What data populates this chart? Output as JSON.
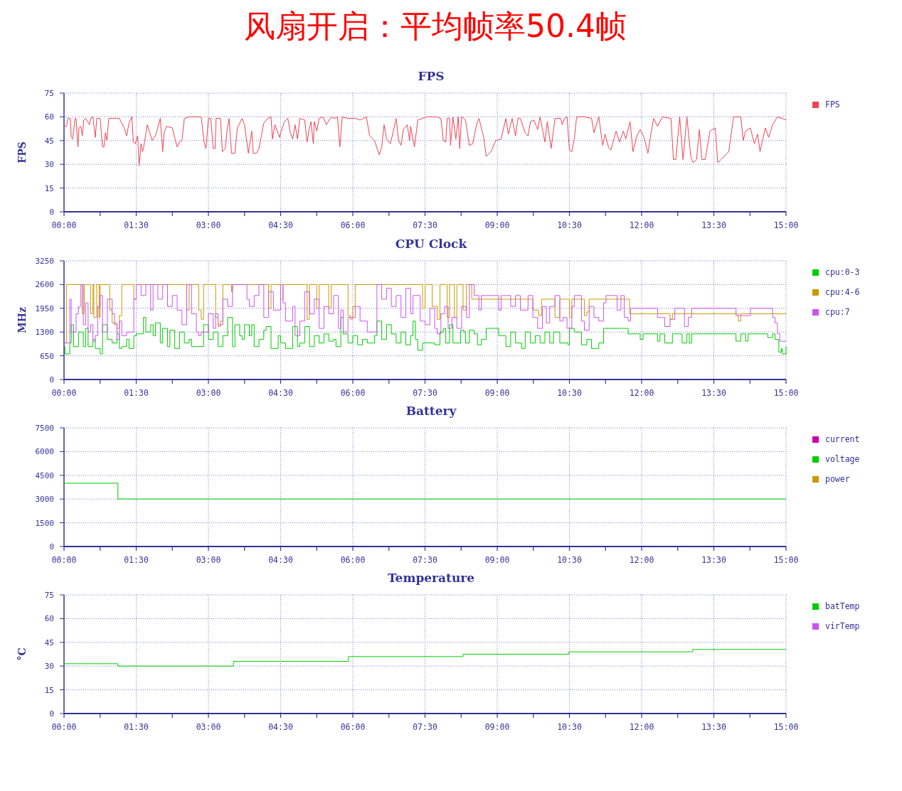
{
  "chart_data": [
    {
      "type": "line",
      "title": "风扇开启：平均帧率50.4帧",
      "subtitle": "FPS",
      "ylabel": "FPS",
      "xlim": [
        0,
        15
      ],
      "ylim": [
        0,
        75
      ],
      "yticks": [
        0,
        15,
        30,
        45,
        60,
        75
      ],
      "xticks": [
        {
          "value": 0,
          "label": "00:00"
        },
        {
          "value": 0.75,
          "label": null
        },
        {
          "value": 1.5,
          "label": "01:30"
        },
        {
          "value": 2.25,
          "label": null
        },
        {
          "value": 3,
          "label": "03:00"
        },
        {
          "value": 3.75,
          "label": null
        },
        {
          "value": 4.5,
          "label": "04:30"
        },
        {
          "value": 5.25,
          "label": null
        },
        {
          "value": 6,
          "label": "06:00"
        },
        {
          "value": 6.75,
          "label": null
        },
        {
          "value": 7.5,
          "label": "07:30"
        },
        {
          "value": 8.25,
          "label": null
        },
        {
          "value": 9,
          "label": "09:00"
        },
        {
          "value": 9.75,
          "label": null
        },
        {
          "value": 10.5,
          "label": "10:30"
        },
        {
          "value": 11.25,
          "label": null
        },
        {
          "value": 12,
          "label": "12:00"
        },
        {
          "value": 12.75,
          "label": null
        },
        {
          "value": 13.5,
          "label": "13:30"
        },
        {
          "value": 14.25,
          "label": null
        },
        {
          "value": 15,
          "label": "15:00"
        }
      ],
      "grid": true,
      "legend": "top right",
      "series": [
        {
          "name": "FPS",
          "color": "#ee4455",
          "x": [
            0,
            0.05,
            0.08,
            0.13,
            0.15,
            0.18,
            0.23,
            0.25,
            0.28,
            0.29,
            0.31,
            0.35,
            0.38,
            0.41,
            0.45,
            0.53,
            0.55,
            0.6,
            0.65,
            0.68,
            0.75,
            0.8,
            0.83,
            0.86,
            0.89,
            0.93,
            1.05,
            1.15,
            1.25,
            1.3,
            1.35,
            1.41,
            1.44,
            1.48,
            1.53,
            1.56,
            1.6,
            1.63,
            1.65,
            1.73,
            1.78,
            1.83,
            1.9,
            2.0,
            2.05,
            2.08,
            2.13,
            2.25,
            2.29,
            2.35,
            2.4,
            2.45,
            2.5,
            2.6,
            2.85,
            2.91,
            2.95,
            3.0,
            3.05,
            3.1,
            3.14,
            3.16,
            3.25,
            3.29,
            3.35,
            3.39,
            3.43,
            3.48,
            3.55,
            3.6,
            3.7,
            3.75,
            3.83,
            3.9,
            3.93,
            4.0,
            4.05,
            4.15,
            4.23,
            4.3,
            4.33,
            4.38,
            4.48,
            4.5,
            4.58,
            4.65,
            4.7,
            4.75,
            4.8,
            4.85,
            4.9,
            5.0,
            5.05,
            5.09,
            5.13,
            5.18,
            5.2,
            5.25,
            5.3,
            5.38,
            5.45,
            5.55,
            5.63,
            5.68,
            5.73,
            5.78,
            5.9,
            6.05,
            6.15,
            6.28,
            6.35,
            6.45,
            6.55,
            6.6,
            6.65,
            6.7,
            6.78,
            6.85,
            6.9,
            6.95,
            7.0,
            7.05,
            7.13,
            7.18,
            7.2,
            7.28,
            7.35,
            7.45,
            7.53,
            7.75,
            7.83,
            7.88,
            7.93,
            7.96,
            8.01,
            8.03,
            8.08,
            8.14,
            8.19,
            8.22,
            8.26,
            8.34,
            8.36,
            8.42,
            8.49,
            8.57,
            8.62,
            8.72,
            8.77,
            8.87,
            8.97,
            9.08,
            9.18,
            9.23,
            9.31,
            9.38,
            9.43,
            9.48,
            9.58,
            9.64,
            9.69,
            9.76,
            9.84,
            9.89,
            9.99,
            10.04,
            10.12,
            10.2,
            10.32,
            10.35,
            10.4,
            10.45,
            10.5,
            10.55,
            10.6,
            10.65,
            10.81,
            10.96,
            11.01,
            11.11,
            11.19,
            11.24,
            11.31,
            11.36,
            11.47,
            11.54,
            11.62,
            11.67,
            11.76,
            11.82,
            11.9,
            11.97,
            12.05,
            12.13,
            12.18,
            12.25,
            12.33,
            12.43,
            12.61,
            12.66,
            12.71,
            12.79,
            12.86,
            12.94,
            13.02,
            13.07,
            13.14,
            13.2,
            13.25,
            13.32,
            13.42,
            13.53,
            13.58,
            13.65,
            13.81,
            13.91,
            14.06,
            14.11,
            14.16,
            14.26,
            14.34,
            14.41,
            14.46,
            14.57,
            14.64,
            14.72,
            14.82,
            14.92,
            15.0
          ],
          "values": [
            54,
            54,
            59,
            59,
            47,
            46,
            59,
            59,
            45,
            41,
            53,
            54,
            48,
            58,
            59,
            55,
            59,
            60,
            47,
            59,
            59,
            41,
            41,
            50,
            45,
            59,
            59,
            59,
            53,
            48,
            56,
            60,
            44,
            43,
            48,
            29,
            43,
            38,
            40,
            55,
            50,
            45,
            48,
            59,
            38,
            50,
            54,
            53,
            48,
            41,
            44,
            45,
            59,
            60,
            60,
            44,
            40,
            59,
            59,
            40,
            40,
            59,
            59,
            38,
            40,
            52,
            59,
            37,
            37,
            53,
            59,
            55,
            37,
            51,
            37,
            37,
            40,
            56,
            59,
            60,
            46,
            55,
            47,
            50,
            57,
            59,
            50,
            46,
            55,
            46,
            59,
            58,
            44,
            52,
            57,
            43,
            57,
            51,
            59,
            60,
            55,
            60,
            59,
            60,
            41,
            60,
            59,
            59,
            58,
            60,
            48,
            45,
            36,
            41,
            55,
            46,
            43,
            52,
            59,
            45,
            42,
            52,
            55,
            45,
            54,
            41,
            58,
            59,
            60,
            60,
            59,
            45,
            44,
            59,
            59,
            42,
            60,
            46,
            60,
            40,
            60,
            58,
            54,
            42,
            43,
            55,
            59,
            47,
            35,
            38,
            45,
            46,
            59,
            49,
            59,
            48,
            59,
            59,
            50,
            48,
            57,
            58,
            52,
            60,
            44,
            57,
            40,
            59,
            59,
            55,
            59,
            60,
            39,
            38,
            46,
            60,
            60,
            59,
            50,
            60,
            42,
            49,
            41,
            39,
            51,
            44,
            51,
            46,
            57,
            38,
            48,
            52,
            47,
            37,
            47,
            59,
            54,
            60,
            59,
            33,
            33,
            60,
            33,
            60,
            35,
            31,
            33,
            52,
            33,
            33,
            51,
            53,
            31,
            33,
            38,
            60,
            60,
            45,
            51,
            53,
            43,
            49,
            38,
            53,
            47,
            55,
            60,
            59,
            58
          ]
        }
      ]
    },
    {
      "type": "step",
      "title": "CPU Clock",
      "ylabel": "MHz",
      "xlim": [
        0,
        15
      ],
      "ylim": [
        0,
        3250
      ],
      "yticks": [
        0,
        650,
        1300,
        1950,
        2600,
        3250
      ],
      "xticks": [
        {
          "value": 0,
          "label": "00:00"
        },
        {
          "value": 0.75,
          "label": null
        },
        {
          "value": 1.5,
          "label": "01:30"
        },
        {
          "value": 2.25,
          "label": null
        },
        {
          "value": 3,
          "label": "03:00"
        },
        {
          "value": 3.75,
          "label": null
        },
        {
          "value": 4.5,
          "label": "04:30"
        },
        {
          "value": 5.25,
          "label": null
        },
        {
          "value": 6,
          "label": "06:00"
        },
        {
          "value": 6.75,
          "label": null
        },
        {
          "value": 7.5,
          "label": "07:30"
        },
        {
          "value": 8.25,
          "label": null
        },
        {
          "value": 9,
          "label": "09:00"
        },
        {
          "value": 9.75,
          "label": null
        },
        {
          "value": 10.5,
          "label": "10:30"
        },
        {
          "value": 11.25,
          "label": null
        },
        {
          "value": 12,
          "label": "12:00"
        },
        {
          "value": 12.75,
          "label": null
        },
        {
          "value": 13.5,
          "label": "13:30"
        },
        {
          "value": 14.25,
          "label": null
        },
        {
          "value": 15,
          "label": "15:00"
        }
      ],
      "grid": true,
      "legend": "top right",
      "series": [
        {
          "name": "cpu:0-3",
          "color": "#00cc00",
          "x": [
            0,
            0.02,
            0.1,
            0.12,
            0.15,
            0.2,
            0.3,
            0.4,
            0.45,
            0.5,
            0.6,
            0.65,
            0.75,
            0.8,
            0.9,
            1.0,
            1.1,
            1.15,
            1.2,
            1.3,
            1.35,
            1.45,
            1.5,
            1.6,
            1.65,
            1.7,
            1.8,
            1.85,
            1.9,
            2.0,
            2.05,
            2.15,
            2.2,
            2.3,
            2.4,
            2.5,
            2.6,
            2.65,
            2.85,
            2.9,
            3.0,
            3.1,
            3.2,
            3.3,
            3.4,
            3.5,
            3.55,
            3.65,
            3.7,
            3.75,
            3.85,
            3.9,
            3.95,
            4.05,
            4.15,
            4.2,
            4.3,
            4.45,
            4.5,
            4.6,
            4.75,
            4.85,
            4.9,
            5.0,
            5.1,
            5.2,
            5.3,
            5.4,
            5.5,
            5.6,
            5.65,
            5.75,
            5.8,
            5.9,
            6.0,
            6.1,
            6.2,
            6.3,
            6.45,
            6.5,
            6.6,
            6.7,
            6.8,
            6.9,
            7.0,
            7.1,
            7.2,
            7.25,
            7.3,
            7.35,
            7.45,
            7.55,
            7.65,
            7.7,
            7.81,
            7.88,
            7.93,
            8.01,
            8.08,
            8.16,
            8.24,
            8.31,
            8.34,
            8.42,
            8.52,
            8.59,
            8.67,
            8.77,
            9.0,
            9.03,
            9.18,
            9.28,
            9.38,
            9.51,
            9.58,
            9.69,
            9.79,
            9.89,
            9.99,
            10.09,
            10.17,
            10.3,
            10.47,
            10.5,
            10.6,
            10.75,
            10.86,
            10.96,
            11.11,
            11.21,
            11.62,
            11.72,
            11.92,
            11.97,
            12.03,
            12.28,
            12.33,
            12.38,
            12.48,
            12.64,
            12.79,
            12.84,
            12.94,
            12.99,
            13.04,
            13.5,
            13.91,
            13.96,
            14.06,
            14.16,
            14.21,
            14.57,
            14.62,
            14.72,
            14.77,
            14.85,
            14.9,
            14.92,
            15.0
          ],
          "values": [
            900,
            700,
            700,
            1000,
            1500,
            900,
            1300,
            900,
            1400,
            900,
            1100,
            850,
            700,
            1500,
            1100,
            1000,
            1250,
            850,
            900,
            1100,
            850,
            1200,
            1250,
            1250,
            1700,
            1300,
            1500,
            1200,
            1550,
            1000,
            1400,
            900,
            1350,
            850,
            1300,
            1000,
            1100,
            900,
            900,
            1500,
            1100,
            1300,
            900,
            1200,
            1700,
            900,
            1500,
            1200,
            1100,
            1500,
            1200,
            1500,
            900,
            1100,
            1350,
            1450,
            850,
            1200,
            1000,
            850,
            1450,
            900,
            1000,
            1450,
            900,
            1200,
            1000,
            1250,
            1050,
            1100,
            900,
            1700,
            1250,
            1000,
            1200,
            950,
            1100,
            1000,
            1200,
            1600,
            1100,
            1500,
            1250,
            1000,
            1300,
            950,
            1200,
            1600,
            1100,
            800,
            1000,
            1000,
            1000,
            950,
            1300,
            1400,
            1000,
            1500,
            1000,
            1000,
            1350,
            1300,
            1000,
            1350,
            1250,
            950,
            1100,
            1400,
            1400,
            1200,
            900,
            1300,
            1000,
            850,
            1300,
            1000,
            1200,
            1000,
            1300,
            1000,
            1300,
            1000,
            950,
            1400,
            1300,
            950,
            1100,
            850,
            1000,
            1400,
            1400,
            1250,
            1250,
            1100,
            1250,
            1250,
            1050,
            1250,
            1000,
            1250,
            1250,
            1000,
            1250,
            1000,
            1250,
            1250,
            1250,
            1050,
            1250,
            1050,
            1250,
            1250,
            1150,
            1250,
            1100,
            750,
            850,
            700,
            900
          ]
        },
        {
          "name": "cpu:4-6",
          "color": "#cc9900",
          "x": [
            0,
            0.05,
            0.35,
            0.38,
            0.42,
            0.5,
            0.55,
            0.6,
            0.62,
            0.68,
            0.73,
            0.75,
            0.9,
            0.95,
            1.0,
            1.1,
            1.15,
            1.2,
            1.4,
            1.45,
            1.5,
            2.5,
            2.55,
            2.6,
            2.7,
            2.8,
            2.85,
            2.9,
            3.1,
            3.15,
            3.2,
            3.25,
            3.3,
            3.45,
            3.48,
            3.5,
            4.2,
            4.25,
            4.3,
            4.45,
            4.5,
            4.55,
            5.0,
            5.05,
            5.1,
            5.2,
            5.25,
            5.3,
            5.45,
            5.5,
            5.55,
            5.8,
            5.9,
            5.95,
            6.0,
            6.05,
            6.3,
            7.42,
            7.45,
            7.5,
            7.6,
            7.65,
            7.75,
            7.81,
            7.93,
            7.96,
            8.01,
            8.06,
            8.11,
            8.16,
            8.24,
            8.29,
            8.36,
            8.44,
            8.47,
            9.69,
            9.74,
            9.86,
            9.92,
            10.09,
            10.2,
            10.3,
            10.45,
            10.5,
            10.55,
            10.75,
            10.81,
            10.86,
            10.91,
            11.72,
            11.75,
            12.53,
            12.59,
            12.64,
            13.96,
            14.01,
            14.06,
            15.0
          ],
          "values": [
            1000,
            2600,
            2600,
            1800,
            2600,
            2600,
            1800,
            2600,
            1700,
            2600,
            1700,
            2600,
            2600,
            1900,
            1550,
            1400,
            1750,
            2600,
            2600,
            2200,
            2600,
            2600,
            1900,
            2600,
            2600,
            1900,
            1650,
            2600,
            2600,
            1700,
            1450,
            1600,
            2600,
            2600,
            2400,
            2600,
            2600,
            1950,
            2600,
            2600,
            2200,
            2600,
            2600,
            1650,
            2600,
            2600,
            1950,
            2600,
            2600,
            1950,
            2600,
            2600,
            1750,
            1650,
            2000,
            2600,
            2600,
            2600,
            1950,
            2600,
            2600,
            2000,
            1650,
            2600,
            2600,
            1700,
            2600,
            2600,
            1700,
            2600,
            2600,
            1900,
            2600,
            2600,
            2200,
            2200,
            1900,
            1750,
            2200,
            2200,
            1700,
            2200,
            2200,
            1700,
            2200,
            2200,
            1750,
            1850,
            2200,
            2200,
            1800,
            1800,
            1650,
            1800,
            1800,
            1600,
            1800,
            1800
          ]
        },
        {
          "name": "cpu:7",
          "color": "#cc55ee",
          "x": [
            0,
            0.1,
            0.12,
            0.15,
            0.2,
            0.25,
            0.3,
            0.35,
            0.4,
            0.45,
            0.5,
            0.55,
            0.6,
            0.65,
            0.7,
            0.75,
            0.8,
            0.9,
            1.0,
            1.05,
            1.1,
            1.15,
            1.2,
            1.3,
            1.35,
            1.45,
            1.5,
            1.6,
            1.7,
            1.8,
            1.85,
            1.95,
            2.05,
            2.15,
            2.25,
            2.35,
            2.45,
            2.5,
            2.55,
            2.65,
            2.75,
            2.8,
            2.85,
            3.0,
            3.1,
            3.15,
            3.2,
            3.3,
            3.4,
            3.5,
            3.7,
            3.8,
            3.85,
            3.95,
            4.05,
            4.15,
            4.25,
            4.35,
            4.5,
            4.55,
            4.6,
            4.75,
            4.8,
            4.9,
            5.0,
            5.1,
            5.2,
            5.3,
            5.4,
            5.5,
            5.6,
            5.7,
            5.75,
            5.8,
            5.9,
            6.05,
            6.15,
            6.3,
            6.4,
            6.5,
            6.6,
            6.7,
            6.8,
            6.9,
            7.0,
            7.1,
            7.2,
            7.25,
            7.4,
            7.5,
            7.6,
            7.7,
            7.75,
            7.83,
            7.91,
            7.98,
            8.06,
            8.16,
            8.26,
            8.36,
            8.42,
            8.47,
            8.52,
            8.62,
            8.67,
            8.77,
            9.0,
            9.03,
            9.08,
            9.18,
            9.28,
            9.38,
            9.48,
            9.64,
            9.74,
            9.84,
            9.94,
            10.02,
            10.09,
            10.2,
            10.3,
            10.37,
            10.45,
            10.55,
            10.6,
            10.75,
            10.81,
            10.91,
            11.01,
            11.11,
            11.21,
            11.26,
            11.42,
            11.49,
            11.57,
            11.64,
            11.72,
            11.77,
            12.28,
            12.33,
            12.48,
            12.59,
            12.69,
            12.84,
            12.89,
            12.97,
            13.04,
            13.86,
            13.96,
            14.26,
            14.57,
            14.72,
            14.77,
            14.82,
            14.87,
            15.0
          ],
          "values": [
            1000,
            1000,
            2200,
            1300,
            1300,
            1800,
            2000,
            2600,
            1500,
            2100,
            1300,
            1500,
            1050,
            1200,
            2000,
            2300,
            1300,
            2200,
            1800,
            1500,
            1100,
            1600,
            1200,
            1300,
            1300,
            2200,
            2600,
            2300,
            2600,
            1900,
            2600,
            2200,
            2600,
            2000,
            2300,
            1900,
            1500,
            1500,
            2600,
            1800,
            1300,
            1200,
            1300,
            1800,
            1400,
            1800,
            1500,
            2200,
            2000,
            2600,
            2600,
            2200,
            2000,
            2300,
            2600,
            1700,
            2400,
            1900,
            2600,
            2100,
            1600,
            2000,
            1200,
            1600,
            2400,
            1800,
            2200,
            1400,
            2000,
            1800,
            2300,
            1400,
            1900,
            1300,
            1700,
            2000,
            1600,
            1300,
            1300,
            2600,
            2200,
            2500,
            2000,
            2300,
            1700,
            2500,
            1800,
            2300,
            1600,
            1500,
            1950,
            1400,
            1250,
            1800,
            2000,
            1400,
            1700,
            1400,
            2000,
            1700,
            2600,
            2600,
            2300,
            1900,
            2300,
            2300,
            2300,
            1900,
            2300,
            2300,
            2000,
            2300,
            1900,
            2300,
            1700,
            1400,
            2000,
            1550,
            2000,
            2300,
            1600,
            1700,
            1400,
            2000,
            2300,
            1600,
            1350,
            2000,
            1700,
            1600,
            2100,
            2300,
            2300,
            1900,
            2300,
            1700,
            1600,
            1950,
            1950,
            1700,
            1450,
            1650,
            1950,
            1950,
            1450,
            1700,
            1950,
            1950,
            1750,
            1950,
            1950,
            1700,
            1550,
            1250,
            1050,
            1050
          ]
        }
      ]
    },
    {
      "type": "step",
      "title": "Battery",
      "xlim": [
        0,
        15
      ],
      "ylim": [
        0,
        7500
      ],
      "yticks": [
        0,
        1500,
        3000,
        4500,
        6000,
        7500
      ],
      "xticks": [
        {
          "value": 0,
          "label": "00:00"
        },
        {
          "value": 0.75,
          "label": null
        },
        {
          "value": 1.5,
          "label": "01:30"
        },
        {
          "value": 2.25,
          "label": null
        },
        {
          "value": 3,
          "label": "03:00"
        },
        {
          "value": 3.75,
          "label": null
        },
        {
          "value": 4.5,
          "label": "04:30"
        },
        {
          "value": 5.25,
          "label": null
        },
        {
          "value": 6,
          "label": "06:00"
        },
        {
          "value": 6.75,
          "label": null
        },
        {
          "value": 7.5,
          "label": "07:30"
        },
        {
          "value": 8.25,
          "label": null
        },
        {
          "value": 9,
          "label": "09:00"
        },
        {
          "value": 9.75,
          "label": null
        },
        {
          "value": 10.5,
          "label": "10:30"
        },
        {
          "value": 11.25,
          "label": null
        },
        {
          "value": 12,
          "label": "12:00"
        },
        {
          "value": 12.75,
          "label": null
        },
        {
          "value": 13.5,
          "label": "13:30"
        },
        {
          "value": 14.25,
          "label": null
        },
        {
          "value": 15,
          "label": "15:00"
        }
      ],
      "grid": true,
      "legend": "top right",
      "series": [
        {
          "name": "current",
          "color": "#cc00aa"
        },
        {
          "name": "voltage",
          "color": "#00cc00",
          "x": [
            0,
            1.12,
            15
          ],
          "values": [
            4000,
            3000,
            3000
          ]
        },
        {
          "name": "power",
          "color": "#cc9900"
        }
      ]
    },
    {
      "type": "step",
      "title": "Temperature",
      "ylabel": "°C",
      "xlim": [
        0,
        15
      ],
      "ylim": [
        0,
        75
      ],
      "yticks": [
        0,
        15,
        30,
        45,
        60,
        75
      ],
      "xticks": [
        {
          "value": 0,
          "label": "00:00"
        },
        {
          "value": 0.75,
          "label": null
        },
        {
          "value": 1.5,
          "label": "01:30"
        },
        {
          "value": 2.25,
          "label": null
        },
        {
          "value": 3,
          "label": "03:00"
        },
        {
          "value": 3.75,
          "label": null
        },
        {
          "value": 4.5,
          "label": "04:30"
        },
        {
          "value": 5.25,
          "label": null
        },
        {
          "value": 6,
          "label": "06:00"
        },
        {
          "value": 6.75,
          "label": null
        },
        {
          "value": 7.5,
          "label": "07:30"
        },
        {
          "value": 8.25,
          "label": null
        },
        {
          "value": 9,
          "label": "09:00"
        },
        {
          "value": 9.75,
          "label": null
        },
        {
          "value": 10.5,
          "label": "10:30"
        },
        {
          "value": 11.25,
          "label": null
        },
        {
          "value": 12,
          "label": "12:00"
        },
        {
          "value": 12.75,
          "label": null
        },
        {
          "value": 13.5,
          "label": "13:30"
        },
        {
          "value": 14.25,
          "label": null
        },
        {
          "value": 15,
          "label": "15:00"
        }
      ],
      "grid": true,
      "legend": "top right",
      "series": [
        {
          "name": "batTemp",
          "color": "#00cc00",
          "x": [
            0,
            1.12,
            3.52,
            5.91,
            8.29,
            10.49,
            13.06,
            15
          ],
          "values": [
            31.5,
            30,
            33,
            36,
            37.5,
            39,
            40.5,
            40.5
          ]
        },
        {
          "name": "virTemp",
          "color": "#cc55ee"
        }
      ]
    }
  ]
}
